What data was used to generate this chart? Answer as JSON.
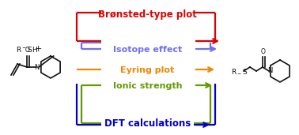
{
  "title": "Brønsted-type plot",
  "label_isotope": "Isotope effect",
  "label_eyring": "Eyring plot",
  "label_ionic": "Ionic strength",
  "label_dft": "DFT calculations",
  "color_red": "#dd0000",
  "color_purple": "#7070ee",
  "color_orange": "#ee8800",
  "color_green": "#669900",
  "color_blue": "#0000cc",
  "color_black": "#111111",
  "background": "white",
  "fig_width": 3.78,
  "fig_height": 1.71,
  "dpi": 100,
  "lw": 1.6
}
